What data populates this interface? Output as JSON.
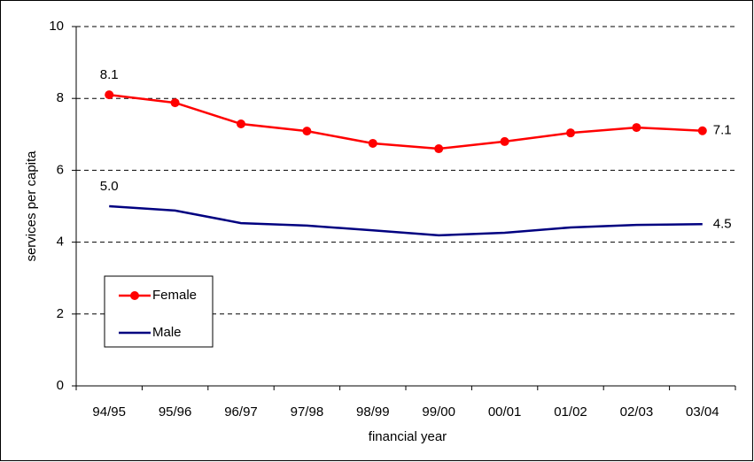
{
  "chart_data": {
    "type": "line",
    "x_label": "financial year",
    "y_label": "services per capita",
    "categories": [
      "94/95",
      "95/96",
      "96/97",
      "97/98",
      "98/99",
      "99/00",
      "00/01",
      "01/02",
      "02/03",
      "03/04"
    ],
    "series": [
      {
        "name": "Female",
        "color": "#ff0000",
        "marker": true,
        "values": [
          8.1,
          7.88,
          7.29,
          7.09,
          6.75,
          6.6,
          6.8,
          7.04,
          7.19,
          7.1
        ],
        "value_labels": [
          "8.1",
          null,
          null,
          null,
          null,
          null,
          null,
          null,
          null,
          "7.1"
        ]
      },
      {
        "name": "Male",
        "color": "#000080",
        "marker": false,
        "values": [
          5.0,
          4.88,
          4.53,
          4.46,
          4.33,
          4.19,
          4.26,
          4.41,
          4.48,
          4.5
        ],
        "value_labels": [
          "5.0",
          null,
          null,
          null,
          null,
          null,
          null,
          null,
          null,
          "4.5"
        ]
      }
    ],
    "ylim": [
      0,
      10
    ],
    "yticks": [
      0,
      2,
      4,
      6,
      8,
      10
    ],
    "grid": true
  }
}
